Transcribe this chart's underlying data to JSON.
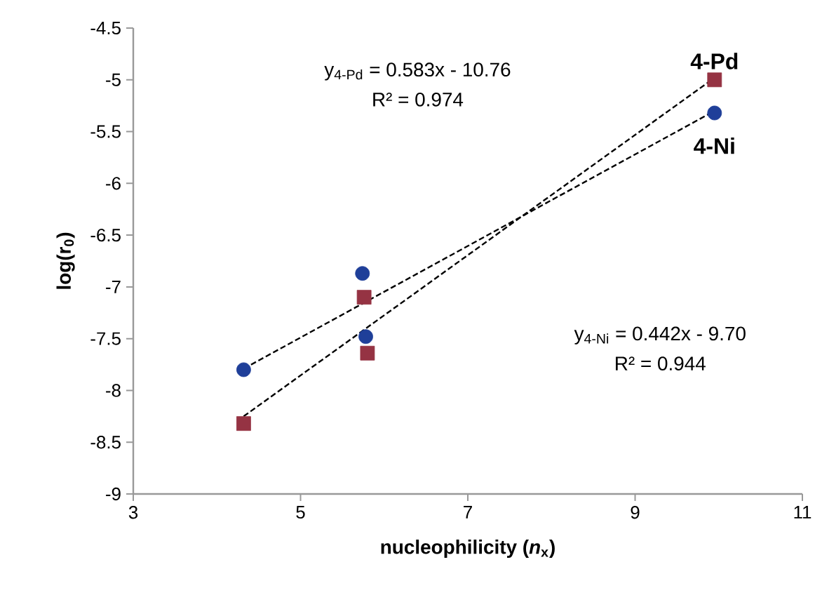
{
  "chart_data": {
    "type": "scatter",
    "xlabel": "nucleophilicity (*n*$_{x}$)",
    "ylabel": "log(r$_{0}$)",
    "xlim": [
      3,
      11
    ],
    "xticks": [
      3,
      5,
      7,
      9,
      11
    ],
    "ylim": [
      -9,
      -4.5
    ],
    "yticks": [
      -9,
      -8.5,
      -8,
      -7.5,
      -7,
      -6.5,
      -6,
      -5.5,
      -5,
      -4.5
    ],
    "grid": false,
    "legend": false,
    "series": [
      {
        "name": "4-Pd",
        "marker": "square",
        "color": "#953343",
        "x": [
          4.32,
          5.76,
          5.8,
          9.95
        ],
        "values": [
          -8.32,
          -7.1,
          -7.64,
          -5.0
        ]
      },
      {
        "name": "4-Ni",
        "marker": "circle",
        "color": "#1f3f99",
        "x": [
          4.32,
          5.74,
          5.78,
          9.95
        ],
        "values": [
          -7.8,
          -6.87,
          -7.48,
          -5.32
        ]
      },
      {
        "type": "line",
        "line_style": "dashed",
        "marker": "none",
        "color": "#000000",
        "x": [
          4.32,
          9.95
        ],
        "values": [
          -8.25,
          -4.98
        ]
      },
      {
        "type": "line",
        "line_style": "dashed",
        "marker": "none",
        "color": "#000000",
        "x": [
          4.32,
          9.95
        ],
        "values": [
          -7.79,
          -5.3
        ]
      }
    ],
    "annotations": [
      "y$_{4-Pd}$ = 0.583x - 10.76",
      "R² = 0.974",
      "y$_{4-Ni}$ = 0.442x - 9.70",
      "R² = 0.944"
    ]
  }
}
